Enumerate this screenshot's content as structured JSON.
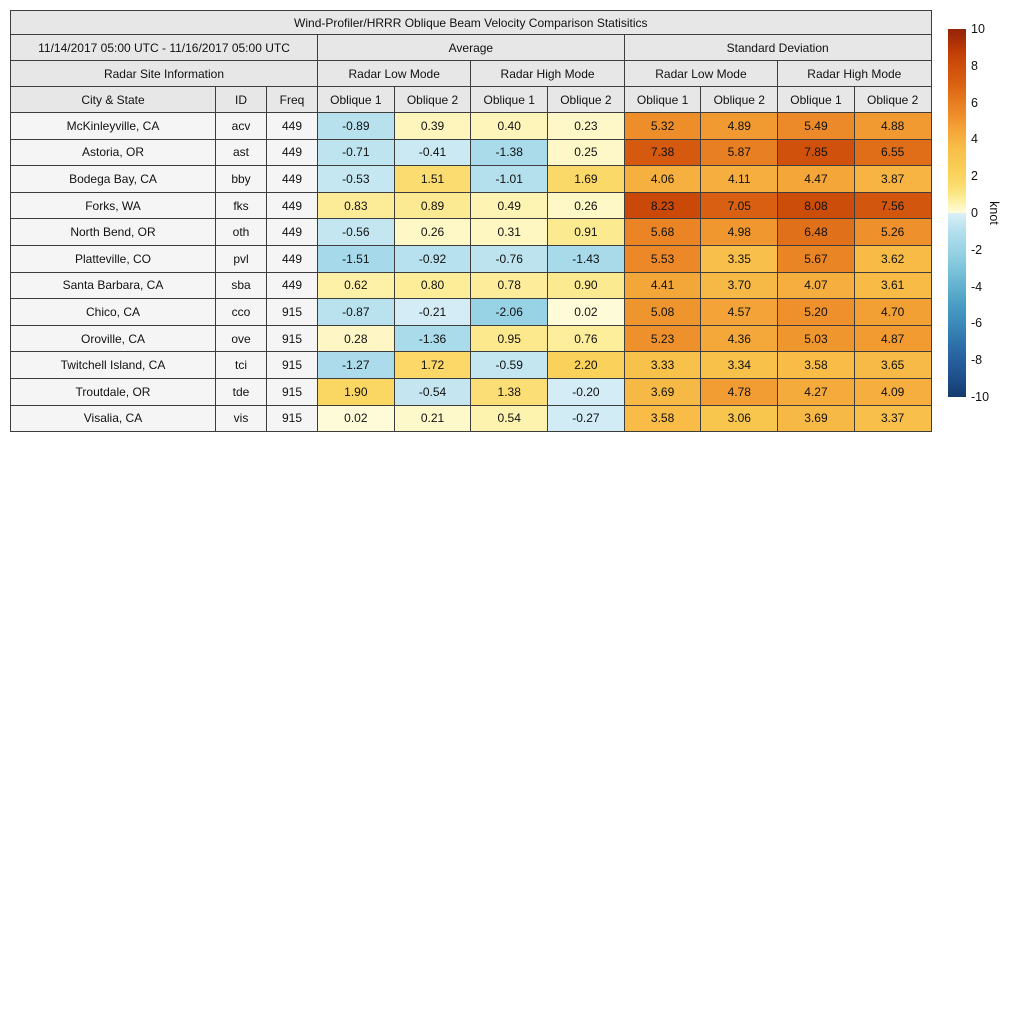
{
  "table": {
    "title": "Wind-Profiler/HRRR Oblique Beam Velocity Comparison Statisitics",
    "period": "11/14/2017 05:00 UTC - 11/16/2017 05:00 UTC",
    "site_info": "Radar Site Information",
    "avg_header": "Average",
    "std_header": "Standard Deviation",
    "low_mode": "Radar Low Mode",
    "high_mode": "Radar High Mode",
    "col_city": "City & State",
    "col_id": "ID",
    "col_freq": "Freq",
    "col_oblique1": "Oblique 1",
    "col_oblique2": "Oblique 2"
  },
  "colorbar": {
    "unit": "knot",
    "min": -10,
    "max": 10,
    "ticks": [
      10,
      8,
      6,
      4,
      2,
      0,
      -2,
      -4,
      -6,
      -8,
      -10
    ]
  },
  "colormap": {
    "positive": [
      [
        0,
        "#fefcd9"
      ],
      [
        0.25,
        "#fef8c8"
      ],
      [
        0.5,
        "#fdf3b1"
      ],
      [
        0.75,
        "#fdee9d"
      ],
      [
        1,
        "#fce789"
      ],
      [
        1.5,
        "#fbdc70"
      ],
      [
        2,
        "#fad45e"
      ],
      [
        2.5,
        "#f9cd55"
      ],
      [
        3,
        "#f8c64e"
      ],
      [
        3.5,
        "#f8be48"
      ],
      [
        4,
        "#f6b140"
      ],
      [
        4.5,
        "#f4a538"
      ],
      [
        5,
        "#f0972f"
      ],
      [
        5.5,
        "#ec8928"
      ],
      [
        6,
        "#e77c20"
      ],
      [
        6.5,
        "#e16f1a"
      ],
      [
        7,
        "#da6112"
      ],
      [
        7.5,
        "#d4570e"
      ],
      [
        8,
        "#cd4e0a"
      ],
      [
        8.5,
        "#c64408"
      ],
      [
        9,
        "#b93706"
      ],
      [
        9.5,
        "#a52c07"
      ],
      [
        10,
        "#942509"
      ]
    ],
    "negative": [
      [
        -10,
        "#143a6d"
      ],
      [
        -9.5,
        "#19457c"
      ],
      [
        -9,
        "#1d4f8a"
      ],
      [
        -8.5,
        "#225794"
      ],
      [
        -8,
        "#275f9d"
      ],
      [
        -7.5,
        "#2b69a4"
      ],
      [
        -7,
        "#2f74ab"
      ],
      [
        -6.5,
        "#357fb2"
      ],
      [
        -6,
        "#3c8ab9"
      ],
      [
        -5.5,
        "#4293be"
      ],
      [
        -5,
        "#4a9dc4"
      ],
      [
        -4.5,
        "#56a7c9"
      ],
      [
        -4,
        "#63b1d0"
      ],
      [
        -3.5,
        "#70bbd4"
      ],
      [
        -3,
        "#7dc4da"
      ],
      [
        -2.5,
        "#8cccdf"
      ],
      [
        -2,
        "#9ad3e6"
      ],
      [
        -1.5,
        "#a6d9e9"
      ],
      [
        -1,
        "#b4e0ed"
      ],
      [
        -0.75,
        "#bde3ef"
      ],
      [
        -0.5,
        "#c6e7f1"
      ],
      [
        -0.25,
        "#d3ecf5"
      ],
      [
        -0.01,
        "#daeef6"
      ]
    ]
  },
  "chart_data": {
    "type": "table",
    "title": "Wind-Profiler/HRRR Oblique Beam Velocity Comparison Statisitics",
    "period": "11/14/2017 05:00 UTC - 11/16/2017 05:00 UTC",
    "unit": "knot",
    "color_scale_range": [
      -10,
      10
    ],
    "column_groups": [
      "Average Radar Low Mode",
      "Average Radar High Mode",
      "Standard Deviation Radar Low Mode",
      "Standard Deviation Radar High Mode"
    ],
    "value_columns": [
      "Avg Low Oblique 1",
      "Avg Low Oblique 2",
      "Avg High Oblique 1",
      "Avg High Oblique 2",
      "Std Low Oblique 1",
      "Std Low Oblique 2",
      "Std High Oblique 1",
      "Std High Oblique 2"
    ],
    "rows": [
      {
        "city": "McKinleyville, CA",
        "id": "acv",
        "freq": "449",
        "avg": [
          -0.89,
          0.39,
          0.4,
          0.23
        ],
        "std": [
          5.32,
          4.89,
          5.49,
          4.88
        ]
      },
      {
        "city": "Astoria, OR",
        "id": "ast",
        "freq": "449",
        "avg": [
          -0.71,
          -0.41,
          -1.38,
          0.25
        ],
        "std": [
          7.38,
          5.87,
          7.85,
          6.55
        ]
      },
      {
        "city": "Bodega Bay, CA",
        "id": "bby",
        "freq": "449",
        "avg": [
          -0.53,
          1.51,
          -1.01,
          1.69
        ],
        "std": [
          4.06,
          4.11,
          4.47,
          3.87
        ]
      },
      {
        "city": "Forks, WA",
        "id": "fks",
        "freq": "449",
        "avg": [
          0.83,
          0.89,
          0.49,
          0.26
        ],
        "std": [
          8.23,
          7.05,
          8.08,
          7.56
        ]
      },
      {
        "city": "North Bend, OR",
        "id": "oth",
        "freq": "449",
        "avg": [
          -0.56,
          0.26,
          0.31,
          0.91
        ],
        "std": [
          5.68,
          4.98,
          6.48,
          5.26
        ]
      },
      {
        "city": "Platteville, CO",
        "id": "pvl",
        "freq": "449",
        "avg": [
          -1.51,
          -0.92,
          -0.76,
          -1.43
        ],
        "std": [
          5.53,
          3.35,
          5.67,
          3.62
        ]
      },
      {
        "city": "Santa Barbara, CA",
        "id": "sba",
        "freq": "449",
        "avg": [
          0.62,
          0.8,
          0.78,
          0.9
        ],
        "std": [
          4.41,
          3.7,
          4.07,
          3.61
        ]
      },
      {
        "city": "Chico, CA",
        "id": "cco",
        "freq": "915",
        "avg": [
          -0.87,
          -0.21,
          -2.06,
          0.02
        ],
        "std": [
          5.08,
          4.57,
          5.2,
          4.7
        ]
      },
      {
        "city": "Oroville, CA",
        "id": "ove",
        "freq": "915",
        "avg": [
          0.28,
          -1.36,
          0.95,
          0.76
        ],
        "std": [
          5.23,
          4.36,
          5.03,
          4.87
        ]
      },
      {
        "city": "Twitchell Island, CA",
        "id": "tci",
        "freq": "915",
        "avg": [
          -1.27,
          1.72,
          -0.59,
          2.2
        ],
        "std": [
          3.33,
          3.34,
          3.58,
          3.65
        ]
      },
      {
        "city": "Troutdale, OR",
        "id": "tde",
        "freq": "915",
        "avg": [
          1.9,
          -0.54,
          1.38,
          -0.2
        ],
        "std": [
          3.69,
          4.78,
          4.27,
          4.09
        ]
      },
      {
        "city": "Visalia, CA",
        "id": "vis",
        "freq": "915",
        "avg": [
          0.02,
          0.21,
          0.54,
          -0.27
        ],
        "std": [
          3.58,
          3.06,
          3.69,
          3.37
        ]
      }
    ]
  }
}
